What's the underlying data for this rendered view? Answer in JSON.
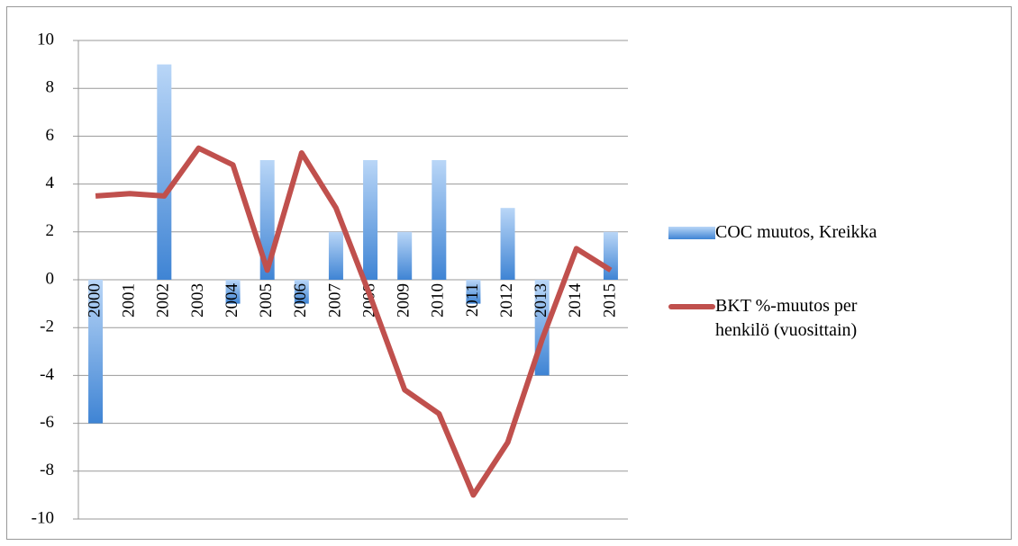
{
  "chart_data": {
    "type": "bar-line",
    "categories": [
      "2000",
      "2001",
      "2002",
      "2003",
      "2004",
      "2005",
      "2006",
      "2007",
      "2008",
      "2009",
      "2010",
      "2011",
      "2012",
      "2013",
      "2014",
      "2015"
    ],
    "series": [
      {
        "name": "COC muutos, Kreikka",
        "type": "bar",
        "color": "#4f8fd8",
        "values": [
          -6,
          0,
          9,
          0,
          -1,
          5,
          -1,
          2,
          5,
          2,
          5,
          -1,
          3,
          -4,
          0,
          2
        ]
      },
      {
        "name": "BKT %-muutos per henkilö (vuosittain)",
        "type": "line",
        "color": "#c0504d",
        "values": [
          3.5,
          3.6,
          3.5,
          5.5,
          4.8,
          0.4,
          5.3,
          3.0,
          -0.7,
          -4.6,
          -5.6,
          -9.0,
          -6.8,
          -2.5,
          1.3,
          0.4
        ]
      }
    ],
    "ylim": [
      -10,
      10
    ],
    "yticks": [
      -10,
      -8,
      -6,
      -4,
      -2,
      0,
      2,
      4,
      6,
      8,
      10
    ],
    "grid": true,
    "legend": "right"
  }
}
